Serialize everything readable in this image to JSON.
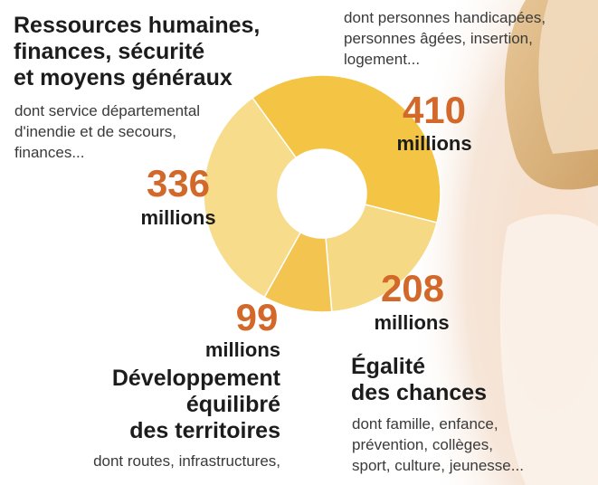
{
  "chart_data": {
    "type": "pie",
    "title": "",
    "unit": "millions",
    "slices": [
      {
        "value": 410,
        "value_label": "410",
        "unit_label": "millions",
        "title_lines": [],
        "description_lines": [
          "dont personnes handicapées,",
          "personnes âgées, insertion,",
          "logement..."
        ],
        "color": "#f4c444"
      },
      {
        "value": 208,
        "value_label": "208",
        "unit_label": "millions",
        "title_lines": [
          "Égalité",
          "des chances"
        ],
        "description_lines": [
          "dont famille, enfance,",
          "prévention, collèges,",
          "sport, culture, jeunesse..."
        ],
        "color": "#f6d985"
      },
      {
        "value": 99,
        "value_label": "99",
        "unit_label": "millions",
        "title_lines": [
          "Développement",
          "équilibré",
          "des territoires"
        ],
        "description_lines": [
          "dont routes, infrastructures,"
        ],
        "color": "#f3c550"
      },
      {
        "value": 336,
        "value_label": "336",
        "unit_label": "millions",
        "title_lines": [
          "Ressources humaines,",
          "finances, sécurité",
          "et moyens généraux"
        ],
        "description_lines": [
          "dont service départemental",
          "d'inendie et de secours,",
          "finances..."
        ],
        "color": "#f7dc8c"
      }
    ]
  },
  "colors": {
    "value_text": "#d2692a",
    "label_text": "#1c1c1c",
    "description_text": "#3a3a3a"
  }
}
